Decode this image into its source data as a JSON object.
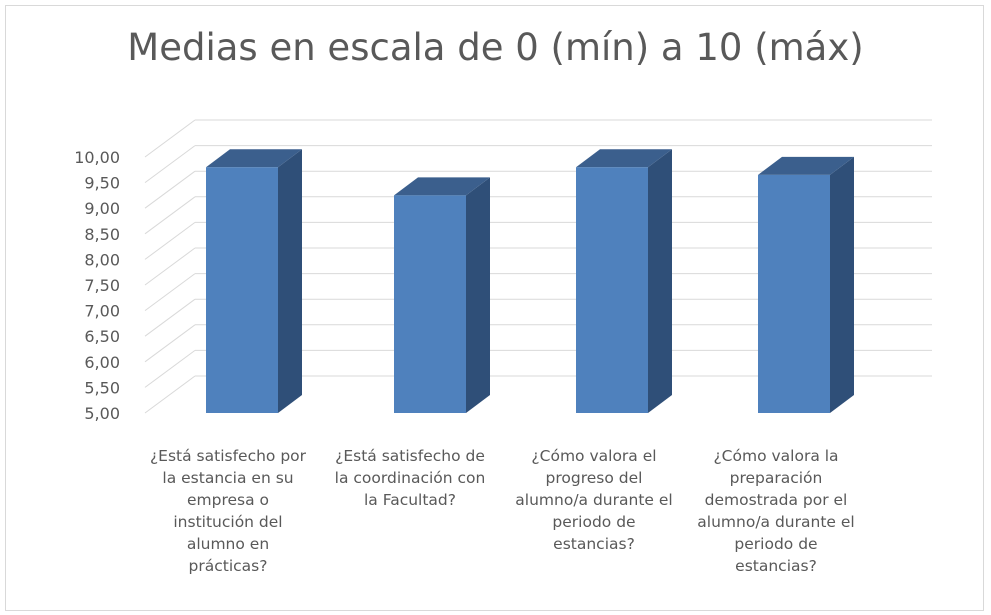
{
  "chart_data": {
    "type": "bar",
    "title": "Medias en escala de 0 (mín)  a 10 (máx)",
    "categories": [
      "¿Está satisfecho por la estancia en su empresa o institución del alumno en prácticas?",
      "¿Está satisfecho de la coordinación con la Facultad?",
      "¿Cómo valora el progreso del alumno/a durante el periodo de estancias?",
      "¿Cómo valora la preparación demostrada por el alumno/a durante el periodo de estancias?"
    ],
    "category_lines": [
      [
        "¿Está satisfecho por",
        "la estancia en su",
        "empresa o",
        "institución del",
        "alumno en",
        "prácticas?"
      ],
      [
        "¿Está satisfecho de",
        "la coordinación con",
        "la Facultad?"
      ],
      [
        "¿Cómo valora el",
        "progreso del",
        "alumno/a durante el",
        "periodo de",
        "estancias?"
      ],
      [
        "¿Cómo valora la",
        "preparación",
        "demostrada por el",
        "alumno/a durante el",
        "periodo de",
        "estancias?"
      ]
    ],
    "values": [
      9.8,
      9.25,
      9.8,
      9.65
    ],
    "ylim": [
      5.0,
      10.0
    ],
    "yticks": [
      "5,00",
      "5,50",
      "6,00",
      "6,50",
      "7,00",
      "7,50",
      "8,00",
      "8,50",
      "9,00",
      "9,50",
      "10,00"
    ],
    "xlabel": "",
    "ylabel": "",
    "grid": true,
    "colors": {
      "front": "#4f81bd",
      "side": "#2f4f78",
      "top": "#3b5f8d",
      "grid": "#d9d9d9",
      "text": "#595959"
    }
  }
}
